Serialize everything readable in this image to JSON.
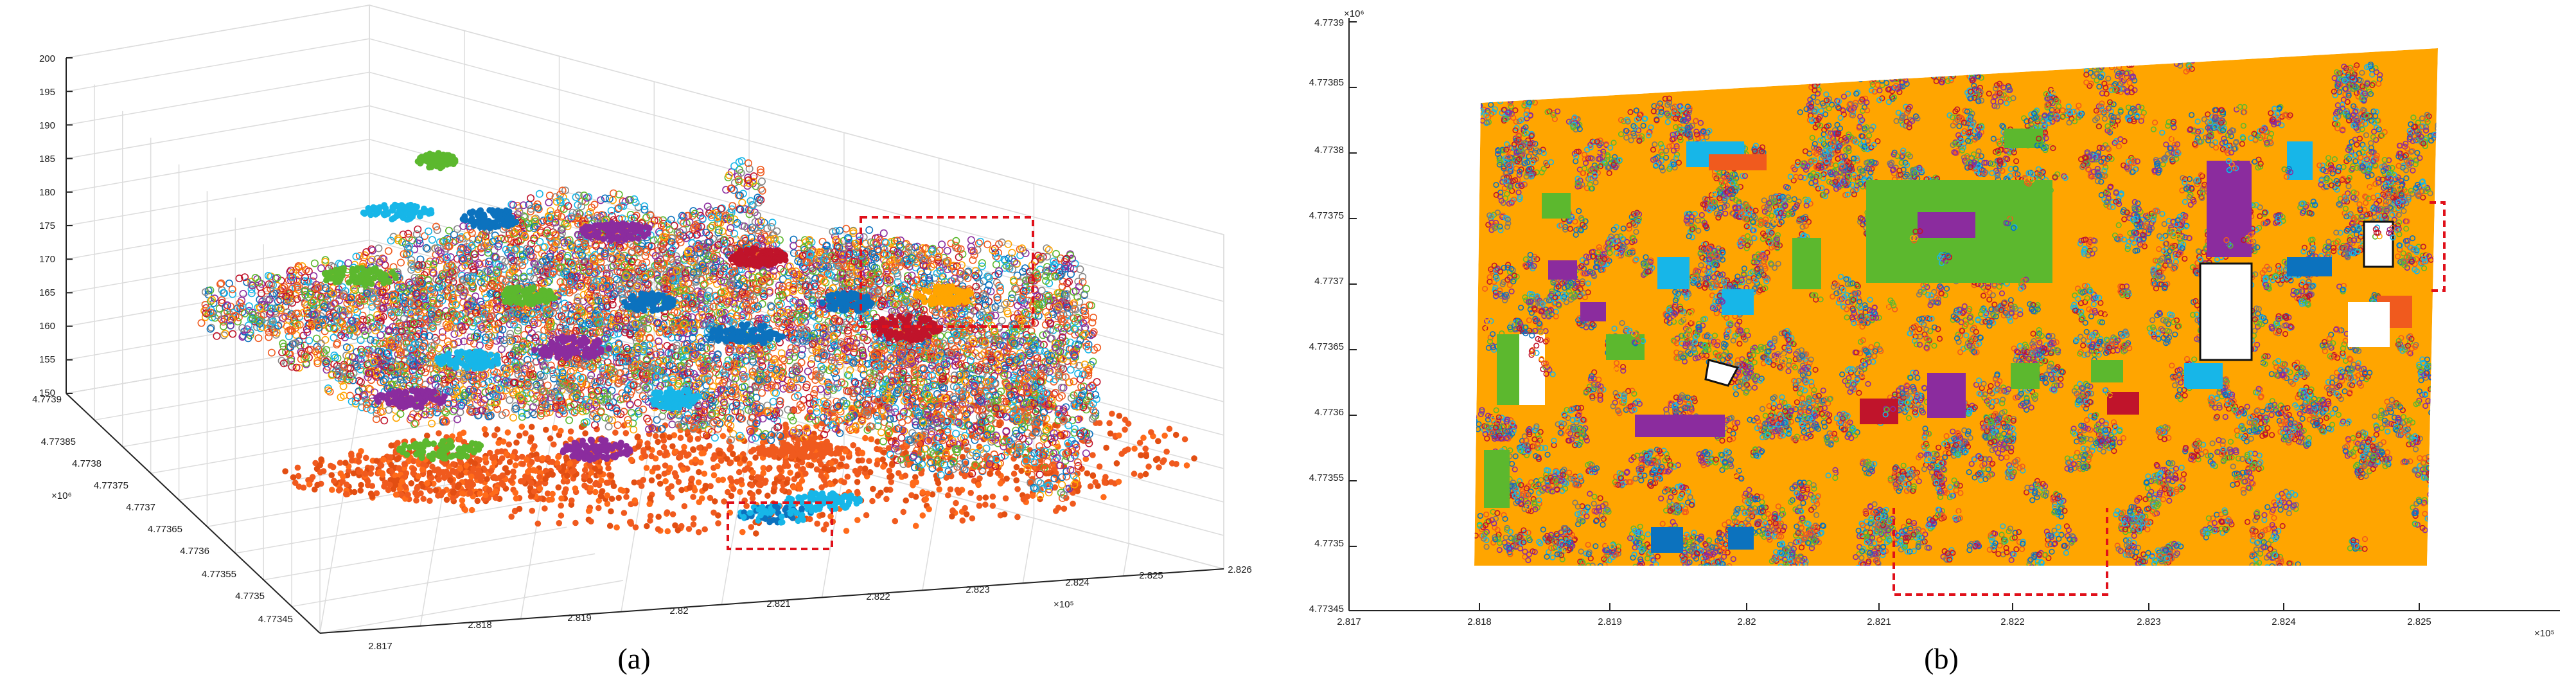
{
  "captions": [
    "(a)",
    "(b)"
  ],
  "colors": {
    "orange": "#FFA500",
    "red_orange": "#F05A1E",
    "purple": "#8B2C9E",
    "green": "#5CB82E",
    "blue": "#0C72BE",
    "cyan": "#17B6E8",
    "crimson": "#C0142B",
    "highlight": "#E0101A"
  },
  "chart_data": [
    {
      "type": "scatter",
      "subtype": "3d-point-cloud",
      "panel": "(a)",
      "z_ticks": [
        "200",
        "195",
        "190",
        "185",
        "180",
        "175",
        "170",
        "165",
        "160",
        "155",
        "150"
      ],
      "y_ticks": [
        "4.7739",
        "4.77385",
        "4.7738",
        "4.77375",
        "4.7737",
        "4.77365",
        "4.7736",
        "4.77355",
        "4.7735",
        "4.77345"
      ],
      "y_exponent": "×10⁶",
      "x_ticks": [
        "2.817",
        "2.818",
        "2.819",
        "2.82",
        "2.821",
        "2.822",
        "2.823",
        "2.824",
        "2.825",
        "2.826"
      ],
      "x_exponent": "×10⁵",
      "zlim": [
        150,
        200
      ],
      "ylim": [
        4.77345,
        4.7739
      ],
      "xlim": [
        2.817,
        2.826
      ],
      "grid": true,
      "series_colors": [
        "#F05A1E",
        "#FFA500",
        "#8B2C9E",
        "#5CB82E",
        "#0C72BE",
        "#17B6E8",
        "#C0142B"
      ]
    },
    {
      "type": "scatter",
      "subtype": "top-view-point-cloud",
      "panel": "(b)",
      "y_ticks": [
        "4.7739",
        "4.77385",
        "4.7738",
        "4.77375",
        "4.7737",
        "4.77365",
        "4.7736",
        "4.77355",
        "4.7735",
        "4.77345"
      ],
      "y_exponent": "×10⁶",
      "x_ticks": [
        "2.817",
        "2.818",
        "2.819",
        "2.82",
        "2.821",
        "2.822",
        "2.823",
        "2.824",
        "2.825"
      ],
      "x_exponent": "×10⁵",
      "ylim": [
        4.77345,
        4.7739
      ],
      "xlim": [
        2.817,
        2.826
      ],
      "grid": false,
      "series_colors": [
        "#FFA500",
        "#8B2C9E",
        "#5CB82E",
        "#0C72BE",
        "#17B6E8",
        "#C0142B",
        "#F05A1E"
      ]
    }
  ]
}
